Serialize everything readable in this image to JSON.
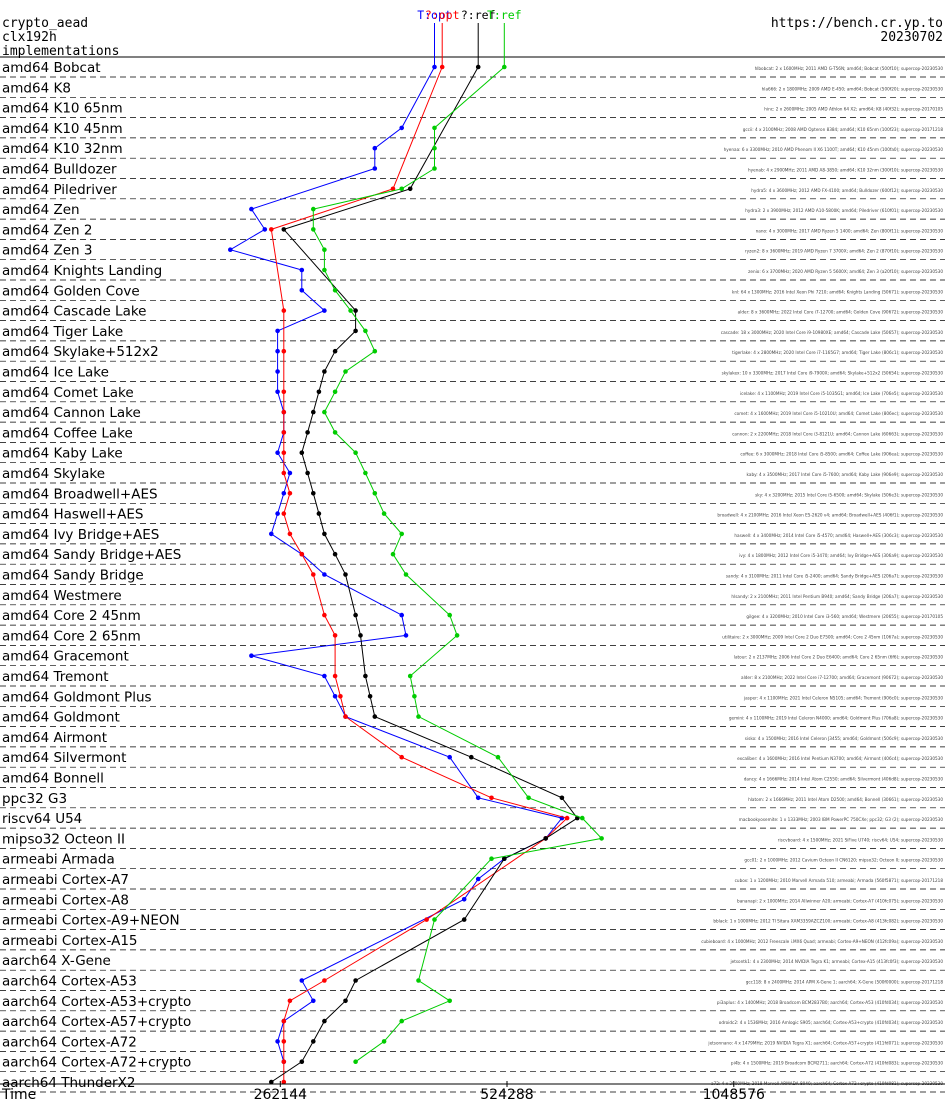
{
  "header": {
    "left_lines": [
      "crypto_aead",
      "clx192h",
      "implementations"
    ],
    "right_lines": [
      "https://bench.cr.yp.to",
      "20230702"
    ]
  },
  "chart_data": {
    "type": "line",
    "title": "crypto_aead clx192h implementations",
    "xlabel": "Time",
    "x_scale": "log2",
    "x_ticks": [
      262144,
      524288,
      1048576
    ],
    "x_tick_labels": [
      "262144",
      "524288",
      "1048576"
    ],
    "xlim": [
      190000,
      2000000
    ],
    "categories": [
      "amd64 Bobcat",
      "amd64 K8",
      "amd64 K10 65nm",
      "amd64 K10 45nm",
      "amd64 K10 32nm",
      "amd64 Bulldozer",
      "amd64 Piledriver",
      "amd64 Zen",
      "amd64 Zen 2",
      "amd64 Zen 3",
      "amd64 Knights Landing",
      "amd64 Golden Cove",
      "amd64 Cascade Lake",
      "amd64 Tiger Lake",
      "amd64 Skylake+512x2",
      "amd64 Ice Lake",
      "amd64 Comet Lake",
      "amd64 Cannon Lake",
      "amd64 Coffee Lake",
      "amd64 Kaby Lake",
      "amd64 Skylake",
      "amd64 Broadwell+AES",
      "amd64 Haswell+AES",
      "amd64 Ivy Bridge+AES",
      "amd64 Sandy Bridge+AES",
      "amd64 Sandy Bridge",
      "amd64 Westmere",
      "amd64 Core 2 45nm",
      "amd64 Core 2 65nm",
      "amd64 Gracemont",
      "amd64 Tremont",
      "amd64 Goldmont Plus",
      "amd64 Goldmont",
      "amd64 Airmont",
      "amd64 Silvermont",
      "amd64 Bonnell",
      "ppc32 G3",
      "riscv64 U54",
      "mipso32 Octeon II",
      "armeabi Armada",
      "armeabi Cortex-A7",
      "armeabi Cortex-A8",
      "armeabi Cortex-A9+NEON",
      "armeabi Cortex-A15",
      "aarch64 X-Gene",
      "aarch64 Cortex-A53",
      "aarch64 Cortex-A53+crypto",
      "aarch64 Cortex-A57+crypto",
      "aarch64 Cortex-A72",
      "aarch64 Cortex-A72+crypto",
      "aarch64 ThunderX2"
    ],
    "series": [
      {
        "name": "T:opt",
        "color": "#0000ff",
        "values": [
          420000,
          null,
          null,
          380000,
          350000,
          350000,
          null,
          240000,
          250000,
          225000,
          280000,
          280000,
          300000,
          260000,
          260000,
          260000,
          260000,
          265000,
          265000,
          260000,
          270000,
          265000,
          260000,
          255000,
          280000,
          300000,
          null,
          380000,
          385000,
          240000,
          300000,
          310000,
          320000,
          null,
          440000,
          null,
          480000,
          620000,
          590000,
          520000,
          480000,
          460000,
          null,
          null,
          null,
          280000,
          290000,
          265000,
          260000,
          265000,
          null
        ]
      },
      {
        "name": "?:opt",
        "color": "#ff0000",
        "values": [
          430000,
          null,
          null,
          null,
          null,
          null,
          370000,
          null,
          255000,
          null,
          null,
          null,
          265000,
          null,
          265000,
          null,
          265000,
          265000,
          265000,
          265000,
          265000,
          270000,
          265000,
          270000,
          280000,
          290000,
          null,
          300000,
          310000,
          null,
          310000,
          315000,
          320000,
          null,
          380000,
          null,
          500000,
          630000,
          590000,
          null,
          null,
          null,
          410000,
          null,
          null,
          300000,
          270000,
          265000,
          265000,
          265000,
          265000
        ]
      },
      {
        "name": "?:ref",
        "color": "#000000",
        "values": [
          480000,
          null,
          null,
          null,
          null,
          null,
          390000,
          null,
          265000,
          null,
          null,
          null,
          330000,
          330000,
          310000,
          300000,
          295000,
          290000,
          285000,
          280000,
          285000,
          290000,
          295000,
          300000,
          310000,
          320000,
          null,
          330000,
          335000,
          null,
          340000,
          345000,
          350000,
          null,
          470000,
          null,
          620000,
          650000,
          590000,
          520000,
          null,
          null,
          460000,
          null,
          null,
          330000,
          320000,
          300000,
          290000,
          280000,
          255000
        ]
      },
      {
        "name": "T:ref",
        "color": "#00cc00",
        "values": [
          520000,
          null,
          null,
          420000,
          420000,
          420000,
          380000,
          290000,
          290000,
          300000,
          300000,
          310000,
          325000,
          340000,
          350000,
          320000,
          310000,
          300000,
          310000,
          330000,
          340000,
          350000,
          360000,
          380000,
          370000,
          385000,
          null,
          440000,
          450000,
          null,
          390000,
          395000,
          400000,
          null,
          510000,
          null,
          560000,
          660000,
          700000,
          500000,
          null,
          null,
          420000,
          null,
          null,
          400000,
          440000,
          380000,
          360000,
          330000,
          null
        ]
      }
    ]
  },
  "rows": [
    {
      "label": "amd64 Bobcat",
      "detail": "hlbobcat: 2 x 1600MHz; 2011 AMD G-T56N; amd64; Bobcat (500f10); supercop-20230530"
    },
    {
      "label": "amd64 K8",
      "detail": "hla666: 2 x 1800MHz; 2009 AMD E-450; amd64; Bobcat (500f20); supercop-20230530"
    },
    {
      "label": "amd64 K10 65nm",
      "detail": "hinc: 2 x 2600MHz; 2005 AMD Athlon 64 X2; amd64; K8 (40f32); supercop-20170105"
    },
    {
      "label": "amd64 K10 45nm",
      "detail": "gccii: 4 x 2100MHz; 2008 AMD Opteron 8384; amd64; K10 65nm (100f23); supercop-20171218"
    },
    {
      "label": "amd64 K10 32nm",
      "detail": "hyenaa: 6 x 3300MHz; 2010 AMD Phenom II X6 1100T; amd64; K10 45nm (100fa0); supercop-20230530"
    },
    {
      "label": "amd64 Bulldozer",
      "detail": "hyenab: 4 x 2900MHz; 2011 AMD A8-3850; amd64; K10 32nm (300f10); supercop-20230530"
    },
    {
      "label": "amd64 Piledriver",
      "detail": "hydra5: 4 x 3600MHz; 2012 AMD FX-4100; amd64; Bulldozer (600f12); supercop-20230530"
    },
    {
      "label": "amd64 Zen",
      "detail": "hydra3: 2 x 3900MHz; 2012 AMD A10-5800K; amd64; Piledriver (610f01); supercop-20230530"
    },
    {
      "label": "amd64 Zen 2",
      "detail": "nano: 4 x 3000MHz; 2017 AMD Ryzen 5 1400; amd64; Zen (800f11); supercop-20230530"
    },
    {
      "label": "amd64 Zen 3",
      "detail": "ryzen2: 8 x 3600MHz; 2019 AMD Ryzen 7 3700X; amd64; Zen 2 (870f10); supercop-20230530"
    },
    {
      "label": "amd64 Knights Landing",
      "detail": "zenio: 6 x 3700MHz; 2020 AMD Ryzen 5 5600X; amd64; Zen 3 (a20f10); supercop-20230530"
    },
    {
      "label": "amd64 Golden Cove",
      "detail": "knl: 64 x 1300MHz; 2016 Intel Xeon Phi 7210; amd64; Knights Landing (50671); supercop-20230530"
    },
    {
      "label": "amd64 Cascade Lake",
      "detail": "alder: 8 x 3600MHz; 2022 Intel Core i7-12700; amd64; Golden Cove (90672); supercop-20230530"
    },
    {
      "label": "amd64 Tiger Lake",
      "detail": "cascade: 18 x 3000MHz; 2020 Intel Core i9-10980XE; amd64; Cascade Lake (50657); supercop-20230530"
    },
    {
      "label": "amd64 Skylake+512x2",
      "detail": "tigerlake: 4 x 2800MHz; 2020 Intel Core i7-1165G7; amd64; Tiger Lake (806c1); supercop-20230530"
    },
    {
      "label": "amd64 Ice Lake",
      "detail": "skylakex: 10 x 3300MHz; 2017 Intel Core i9-7900X; amd64; Skylake+512x2 (50654); supercop-20230530"
    },
    {
      "label": "amd64 Comet Lake",
      "detail": "icelake: 4 x 1100MHz; 2019 Intel Core i5-1035G1; amd64; Ice Lake (706e5); supercop-20230530"
    },
    {
      "label": "amd64 Cannon Lake",
      "detail": "comet: 4 x 1600MHz; 2019 Intel Core i5-10210U; amd64; Comet Lake (806ec); supercop-20230530"
    },
    {
      "label": "amd64 Coffee Lake",
      "detail": "cannon: 2 x 2200MHz; 2018 Intel Core i3-8121U; amd64; Cannon Lake (60663); supercop-20230530"
    },
    {
      "label": "amd64 Kaby Lake",
      "detail": "coffee: 6 x 3000MHz; 2018 Intel Core i5-8500; amd64; Coffee Lake (906ea); supercop-20230530"
    },
    {
      "label": "amd64 Skylake",
      "detail": "kaby: 4 x 3500MHz; 2017 Intel Core i5-7600; amd64; Kaby Lake (906e9); supercop-20230530"
    },
    {
      "label": "amd64 Broadwell+AES",
      "detail": "sky: 4 x 3200MHz; 2015 Intel Core i5-6500; amd64; Skylake (506e3); supercop-20230530"
    },
    {
      "label": "amd64 Haswell+AES",
      "detail": "broadwell: 4 x 2100MHz; 2016 Intel Xeon E5-2620 v4; amd64; Broadwell+AES (406f1); supercop-20230530"
    },
    {
      "label": "amd64 Ivy Bridge+AES",
      "detail": "haswell: 4 x 3400MHz; 2014 Intel Core i5-4570; amd64; Haswell+AES (306c3); supercop-20230530"
    },
    {
      "label": "amd64 Sandy Bridge+AES",
      "detail": "ivy: 4 x 1800MHz; 2012 Intel Core i5-3470; amd64; Ivy Bridge+AES (306a9); supercop-20230530"
    },
    {
      "label": "amd64 Sandy Bridge",
      "detail": "sandy: 4 x 3100MHz; 2011 Intel Core i5-2400; amd64; Sandy Bridge+AES (206a7); supercop-20230530"
    },
    {
      "label": "amd64 Westmere",
      "detail": "hlsandy: 2 x 2100MHz; 2011 Intel Pentium B940; amd64; Sandy Bridge (206a7); supercop-20230530"
    },
    {
      "label": "amd64 Core 2 45nm",
      "detail": "gilgee: 4 x 3200MHz; 2010 Intel Core i3-560; amd64; Westmere (20655); supercop-20170105"
    },
    {
      "label": "amd64 Core 2 65nm",
      "detail": "utilitaire: 2 x 3000MHz; 2009 Intel Core 2 Duo E7500; amd64; Core 2 45nm (1067a); supercop-20230530"
    },
    {
      "label": "amd64 Gracemont",
      "detail": "latour: 2 x 2137MHz; 2006 Intel Core 2 Duo E6400; amd64; Core 2 65nm (6f6); supercop-20230530"
    },
    {
      "label": "amd64 Tremont",
      "detail": "alder: 8 x 2100MHz; 2022 Intel Core i7-12700; amd64; Gracemont (90672); supercop-20230530"
    },
    {
      "label": "amd64 Goldmont Plus",
      "detail": "jasper: 4 x 1100MHz; 2021 Intel Celeron N5105; amd64; Tremont (906c0); supercop-20230530"
    },
    {
      "label": "amd64 Goldmont",
      "detail": "gemini: 4 x 1100MHz; 2019 Intel Celeron N4000; amd64; Goldmont Plus (706a8); supercop-20230530"
    },
    {
      "label": "amd64 Airmont",
      "detail": "sisko: 4 x 1500MHz; 2016 Intel Celeron J3455; amd64; Goldmont (506c9); supercop-20230530"
    },
    {
      "label": "amd64 Silvermont",
      "detail": "excaliber: 4 x 1600MHz; 2016 Intel Pentium N3700; amd64; Airmont (406c4); supercop-20230530"
    },
    {
      "label": "amd64 Bonnell",
      "detail": "dancy: 4 x 1666MHz; 2014 Intel Atom C2550; amd64; Silvermont (406d8); supercop-20230530"
    },
    {
      "label": "ppc32 G3",
      "detail": "hlatom: 2 x 1666MHz; 2011 Intel Atom D2500; amd64; Bonnell (30661); supercop-20230530"
    },
    {
      "label": "riscv64 U54",
      "detail": "macbookyosemite: 1 x 1333MHz; 2003 IBM PowerPC 750CXe; ppc32; G3 (2); supercop-20230530"
    },
    {
      "label": "mipso32 Octeon II",
      "detail": "riscvboard: 4 x 1500MHz; 2021 SiFive U740; riscv64; U54; supercop-20230530"
    },
    {
      "label": "armeabi Armada",
      "detail": "gcc01: 2 x 1000MHz; 2012 Cavium Octeon II CN6120; mipso32; Octeon II; supercop-20230530"
    },
    {
      "label": "armeabi Cortex-A7",
      "detail": "cubox: 1 x 1200MHz; 2010 Marvell Armada 510; armeabi; Armada (560f5871); supercop-20171218"
    },
    {
      "label": "armeabi Cortex-A8",
      "detail": "bananapi: 2 x 1000MHz; 2014 Allwinner A20; armeabi; Cortex-A7 (410fc075); supercop-20230530"
    },
    {
      "label": "armeabi Cortex-A9+NEON",
      "detail": "bblack: 1 x 1000MHz; 2012 TI Sitara XAM3359AZCZ100; armeabi; Cortex-A8 (413fc082); supercop-20230530"
    },
    {
      "label": "armeabi Cortex-A15",
      "detail": "cubieboard: 4 x 1000MHz; 2012 Freescale i.MX6 Quad; armeabi; Cortex-A9+NEON (412fc09a); supercop-20230530"
    },
    {
      "label": "aarch64 X-Gene",
      "detail": "jetsontk1: 4 x 2300MHz; 2014 NVIDIA Tegra K1; armeabi; Cortex-A15 (413fc0f3); supercop-20230530"
    },
    {
      "label": "aarch64 Cortex-A53",
      "detail": "gcc118: 8 x 2400MHz; 2014 APM X-Gene 1; aarch64; X-Gene (500f0000); supercop-20171218"
    },
    {
      "label": "aarch64 Cortex-A53+crypto",
      "detail": "pi3aplus: 4 x 1400MHz; 2018 Broadcom BCM2837B0; aarch64; Cortex-A53 (410fd034); supercop-20230530"
    },
    {
      "label": "aarch64 Cortex-A57+crypto",
      "detail": "odroidc2: 4 x 1536MHz; 2016 Amlogic S905; aarch64; Cortex-A53+crypto (410fd034); supercop-20230530"
    },
    {
      "label": "aarch64 Cortex-A72",
      "detail": "jetsonnano: 4 x 1479MHz; 2019 NVIDIA Tegra X1; aarch64; Cortex-A57+crypto (411fd071); supercop-20230530"
    },
    {
      "label": "aarch64 Cortex-A72+crypto",
      "detail": "pi4b: 4 x 1500MHz; 2019 Broadcom BCM2711; aarch64; Cortex-A72 (410fd083); supercop-20230530"
    },
    {
      "label": "aarch64 ThunderX2",
      "detail": "a72: 4 x 2000MHz; 2018 Marvell ARMADA 8040; aarch64; Cortex-A72+crypto (410fd081); supercop-20230530"
    }
  ]
}
